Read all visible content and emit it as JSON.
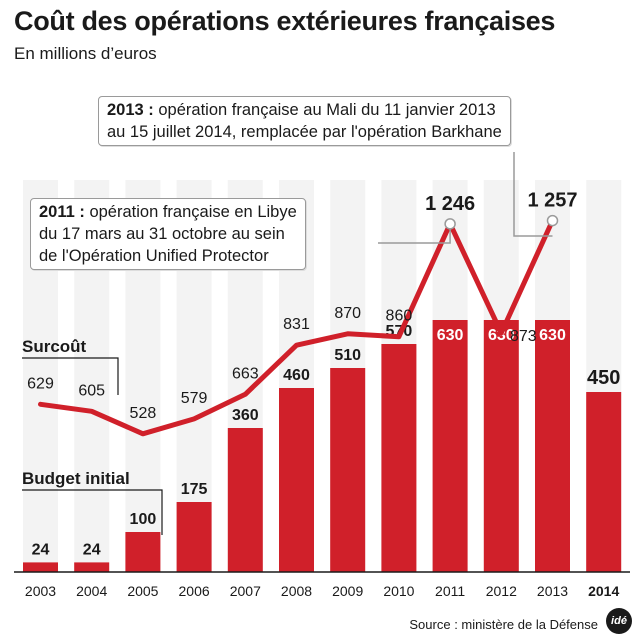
{
  "title": "Coût des opérations extérieures françaises",
  "subtitle": "En millions d’euros",
  "source": "Source : ministère de la Défense",
  "logo": "idé",
  "callouts": {
    "c2013_year": "2013 :",
    "c2013_line1": " opération française au Mali du 11 janvier 2013",
    "c2013_line2": "au 15 juillet 2014, remplacée par l'opération Barkhane",
    "c2011_year": "2011 :",
    "c2011_line1": " opération française en Libye",
    "c2011_line2": "du 17 mars au 31 octobre au sein",
    "c2011_line3": "de l'Opération Unified Protector"
  },
  "chart_data": {
    "type": "bar",
    "categories": [
      "2003",
      "2004",
      "2005",
      "2006",
      "2007",
      "2008",
      "2009",
      "2010",
      "2011",
      "2012",
      "2013",
      "2014"
    ],
    "series": [
      {
        "name": "Budget initial",
        "type": "bar",
        "values": [
          24,
          24,
          100,
          175,
          360,
          460,
          510,
          570,
          630,
          630,
          630,
          450
        ],
        "labels": [
          "24",
          "24",
          "100",
          "175",
          "360",
          "460",
          "510",
          "570",
          "630",
          "630",
          "630",
          "450"
        ]
      },
      {
        "name": "Surcoût",
        "type": "line",
        "values": [
          629,
          605,
          528,
          579,
          663,
          831,
          870,
          860,
          1246,
          873,
          1257,
          null
        ],
        "labels": [
          "629",
          "605",
          "528",
          "579",
          "663",
          "831",
          "870",
          "860",
          "1 246",
          "873",
          "1 257",
          ""
        ]
      }
    ],
    "ylim": [
      0,
      1400
    ],
    "colors": {
      "bar": "#d0202a",
      "line": "#d0202a",
      "background_bar": "#f3f3f3"
    }
  }
}
